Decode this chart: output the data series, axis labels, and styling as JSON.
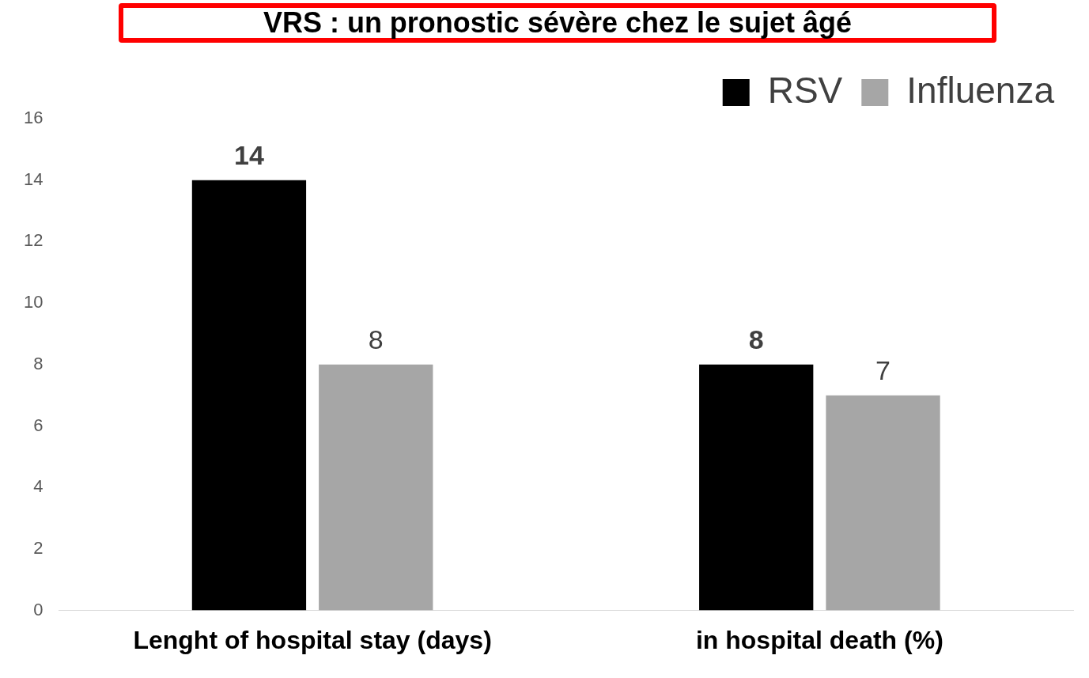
{
  "chart_data": {
    "type": "bar",
    "title": "VRS : un pronostic sévère chez le sujet âgé",
    "categories": [
      "Lenght of hospital stay (days)",
      "in hospital death (%)"
    ],
    "series": [
      {
        "name": "RSV",
        "color": "#000000",
        "values": [
          14,
          8
        ]
      },
      {
        "name": "Influenza",
        "color": "#a6a6a6",
        "values": [
          8,
          7
        ]
      }
    ],
    "ylim": [
      0,
      16
    ],
    "yticks": [
      0,
      2,
      4,
      6,
      8,
      10,
      12,
      14,
      16
    ],
    "grid": false,
    "legend": "top right",
    "data_labels": true
  }
}
